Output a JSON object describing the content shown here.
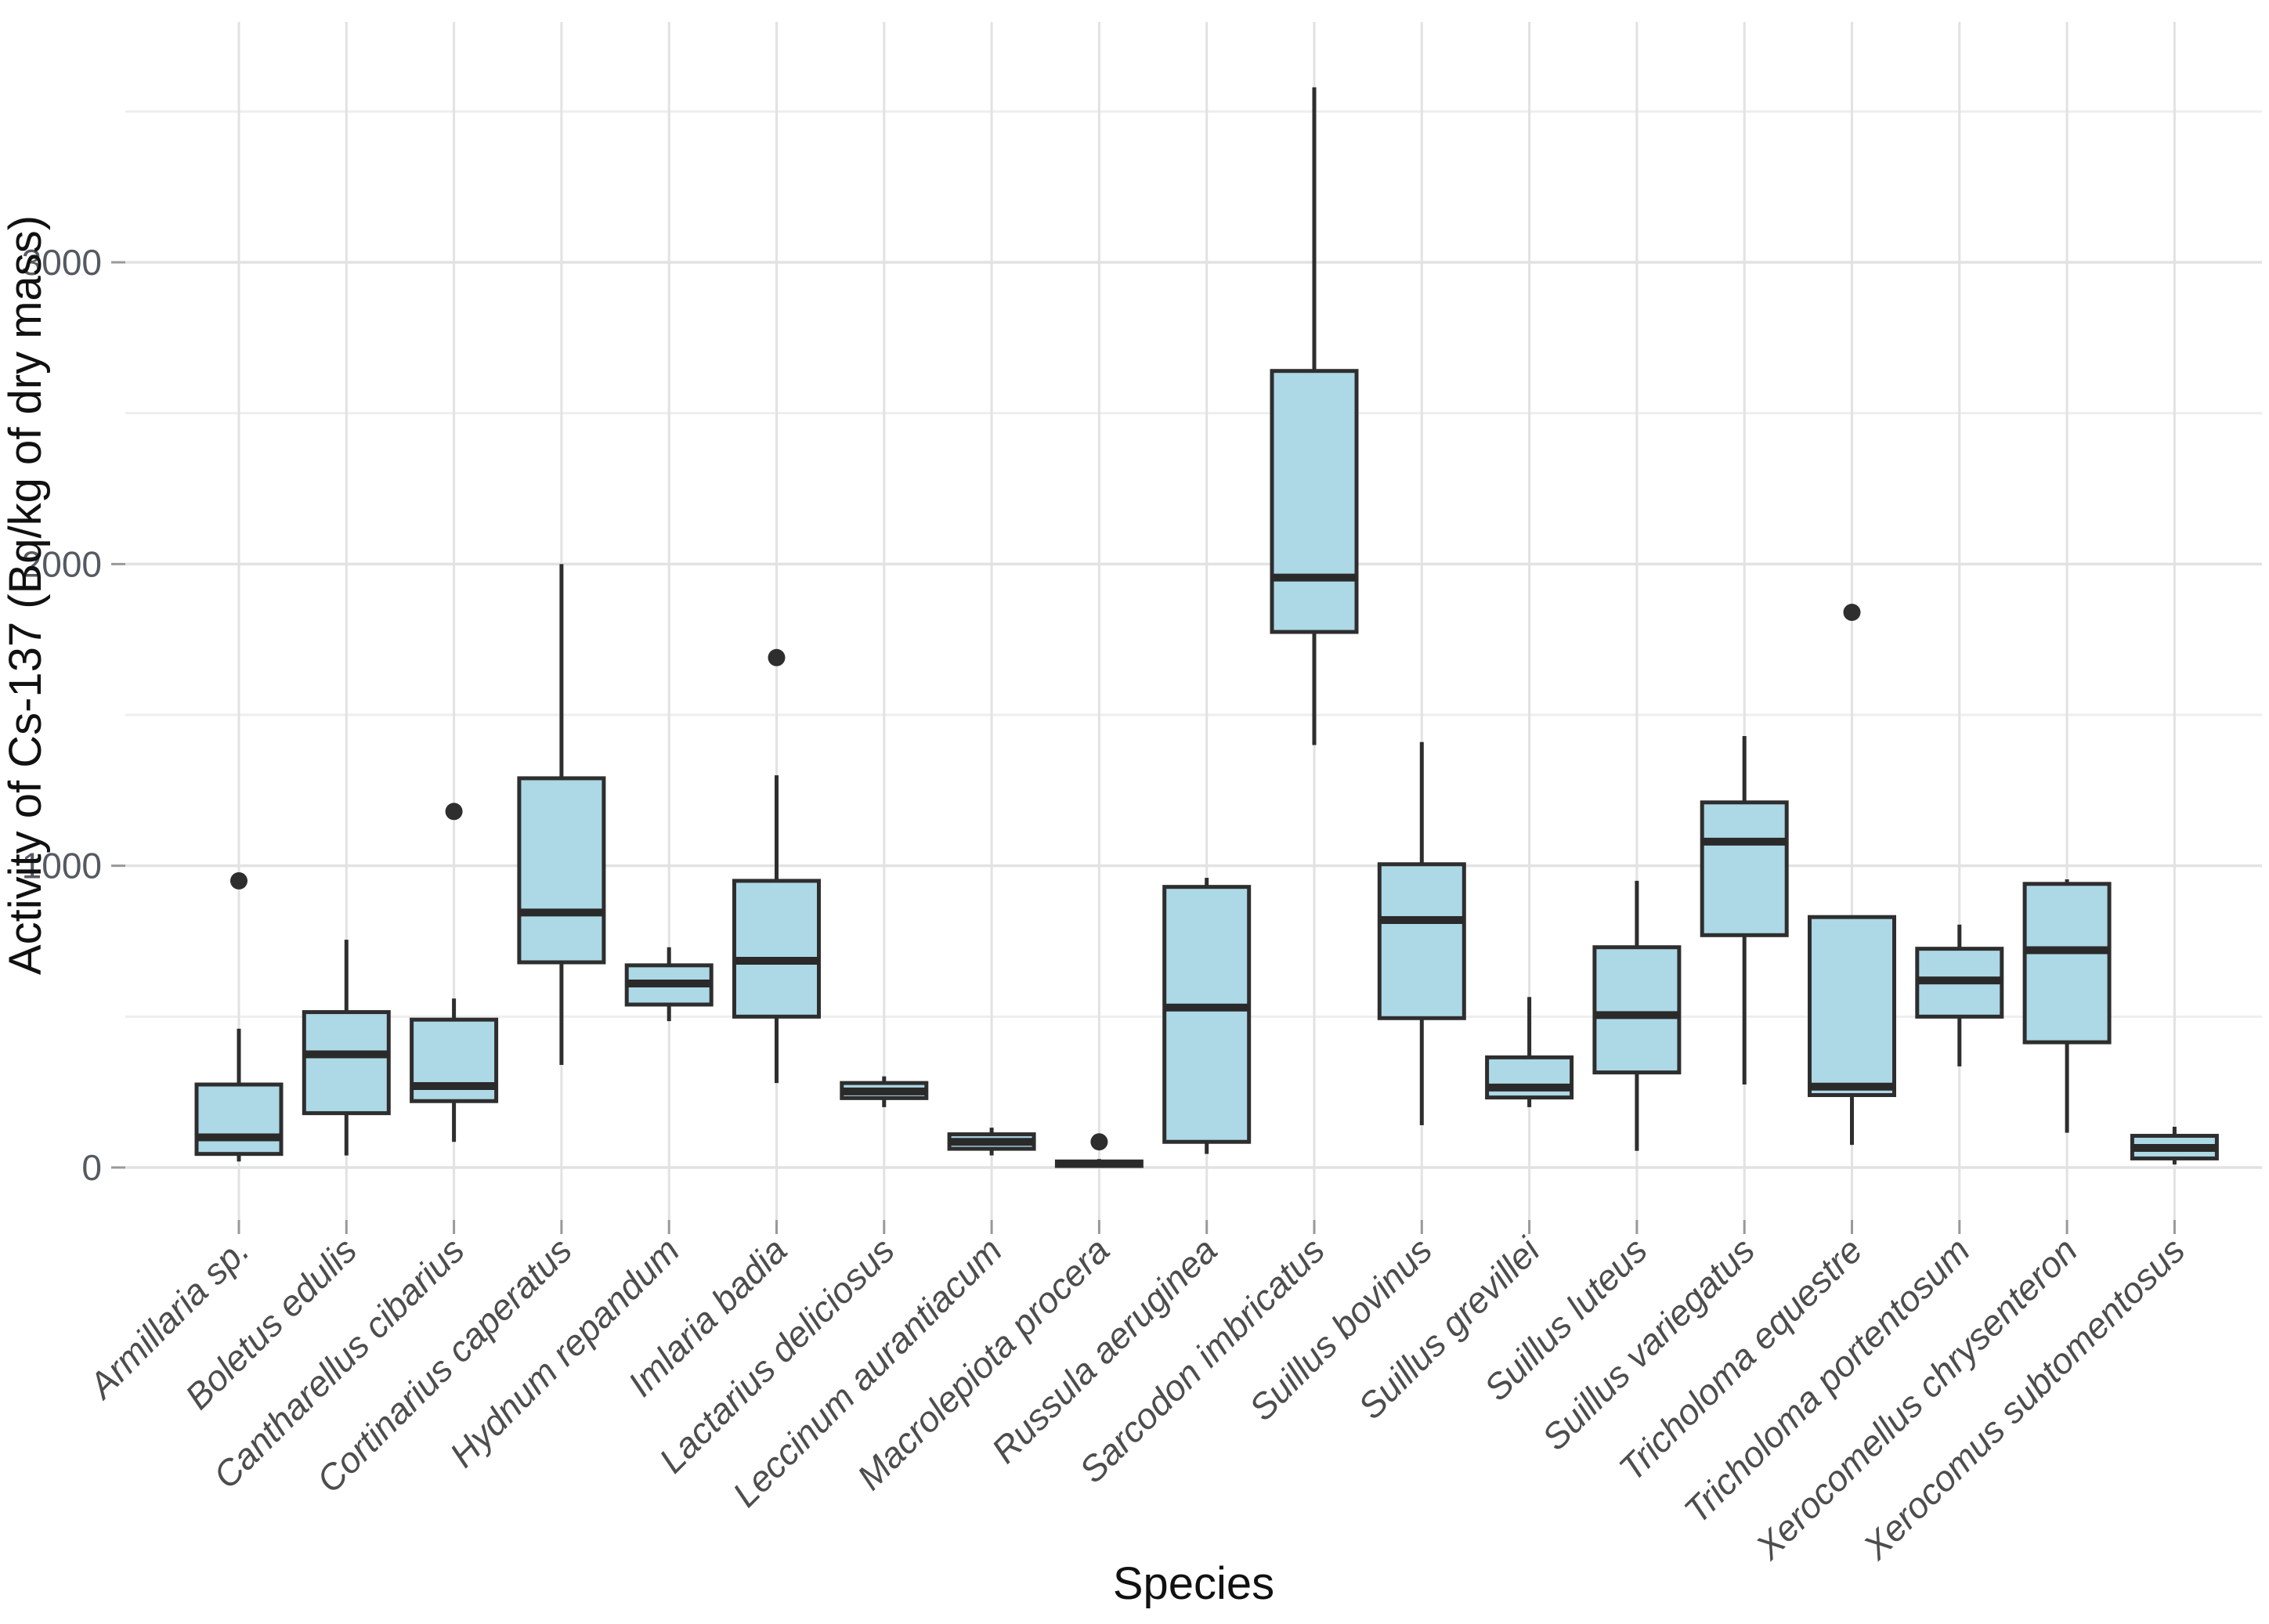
{
  "chart_data": {
    "type": "boxplot",
    "title": "",
    "xlabel": "Species",
    "ylabel": "Activity of Cs-137 (Bq/kg of dry mass)",
    "yticks": [
      0,
      1000,
      2000,
      3000
    ],
    "ytick_labels": [
      "0",
      "1000",
      "2000",
      "3000"
    ],
    "ylim": [
      -170,
      3800
    ],
    "grid": "horizontal major and minor gridlines plus one vertical gridline per category, light gray on white",
    "legend": "none",
    "categories": [
      "Armillaria sp.",
      "Boletus edulis",
      "Cantharellus cibarius",
      "Cortinarius caperatus",
      "Hydnum repandum",
      "Imlaria badia",
      "Lactarius deliciosus",
      "Leccinum aurantiacum",
      "Macrolepiota procera",
      "Russula aeruginea",
      "Sarcodon imbricatus",
      "Suillus bovinus",
      "Suillus grevillei",
      "Suillus luteus",
      "Suillus variegatus",
      "Tricholoma equestre",
      "Tricholoma portentosum",
      "Xerocomellus chrysenteron",
      "Xerocomus subtomentosus"
    ],
    "series": [
      {
        "name": "Armillaria sp.",
        "min": 20,
        "q1": 45,
        "median": 100,
        "q3": 275,
        "max": 460,
        "outliers": [
          950
        ]
      },
      {
        "name": "Boletus edulis",
        "min": 40,
        "q1": 180,
        "median": 375,
        "q3": 515,
        "max": 755,
        "outliers": []
      },
      {
        "name": "Cantharellus cibarius",
        "min": 85,
        "q1": 220,
        "median": 270,
        "q3": 490,
        "max": 560,
        "outliers": [
          1180
        ]
      },
      {
        "name": "Cortinarius caperatus",
        "min": 340,
        "q1": 680,
        "median": 845,
        "q3": 1290,
        "max": 2000,
        "outliers": []
      },
      {
        "name": "Hydnum repandum",
        "min": 485,
        "q1": 540,
        "median": 610,
        "q3": 670,
        "max": 730,
        "outliers": []
      },
      {
        "name": "Imlaria badia",
        "min": 280,
        "q1": 500,
        "median": 685,
        "q3": 950,
        "max": 1300,
        "outliers": [
          1690
        ]
      },
      {
        "name": "Lactarius deliciosus",
        "min": 200,
        "q1": 230,
        "median": 252,
        "q3": 280,
        "max": 302,
        "outliers": []
      },
      {
        "name": "Leccinum aurantiacum",
        "min": 40,
        "q1": 62,
        "median": 85,
        "q3": 110,
        "max": 132,
        "outliers": []
      },
      {
        "name": "Macrolepiota procera",
        "min": 0,
        "q1": 5,
        "median": 12,
        "q3": 20,
        "max": 28,
        "outliers": [
          85
        ]
      },
      {
        "name": "Russula aeruginea",
        "min": 45,
        "q1": 85,
        "median": 530,
        "q3": 930,
        "max": 960,
        "outliers": []
      },
      {
        "name": "Sarcodon imbricatus",
        "min": 1400,
        "q1": 1775,
        "median": 1955,
        "q3": 2640,
        "max": 3580,
        "outliers": []
      },
      {
        "name": "Suillus bovinus",
        "min": 140,
        "q1": 495,
        "median": 820,
        "q3": 1005,
        "max": 1410,
        "outliers": []
      },
      {
        "name": "Suillus grevillei",
        "min": 200,
        "q1": 232,
        "median": 265,
        "q3": 365,
        "max": 565,
        "outliers": []
      },
      {
        "name": "Suillus luteus",
        "min": 55,
        "q1": 315,
        "median": 505,
        "q3": 730,
        "max": 950,
        "outliers": []
      },
      {
        "name": "Suillus variegatus",
        "min": 275,
        "q1": 770,
        "median": 1080,
        "q3": 1210,
        "max": 1430,
        "outliers": []
      },
      {
        "name": "Tricholoma equestre",
        "min": 75,
        "q1": 240,
        "median": 268,
        "q3": 830,
        "max": 830,
        "outliers": [
          1840
        ]
      },
      {
        "name": "Tricholoma portentosum",
        "min": 335,
        "q1": 500,
        "median": 620,
        "q3": 725,
        "max": 805,
        "outliers": []
      },
      {
        "name": "Xerocomellus chrysenteron",
        "min": 115,
        "q1": 415,
        "median": 720,
        "q3": 940,
        "max": 955,
        "outliers": []
      },
      {
        "name": "Xerocomus subtomentosus",
        "min": 10,
        "q1": 30,
        "median": 65,
        "q3": 105,
        "max": 135,
        "outliers": []
      }
    ],
    "colors": {
      "box_fill": "#ADD8E6",
      "box_stroke": "#2e2e2e",
      "median_stroke": "#2a2a2a",
      "outlier_fill": "#2e2e2e",
      "grid_major": "#e2e2e2",
      "grid_minor": "#eeeeee",
      "tick_mark": "#999999",
      "background": "#ffffff"
    }
  }
}
